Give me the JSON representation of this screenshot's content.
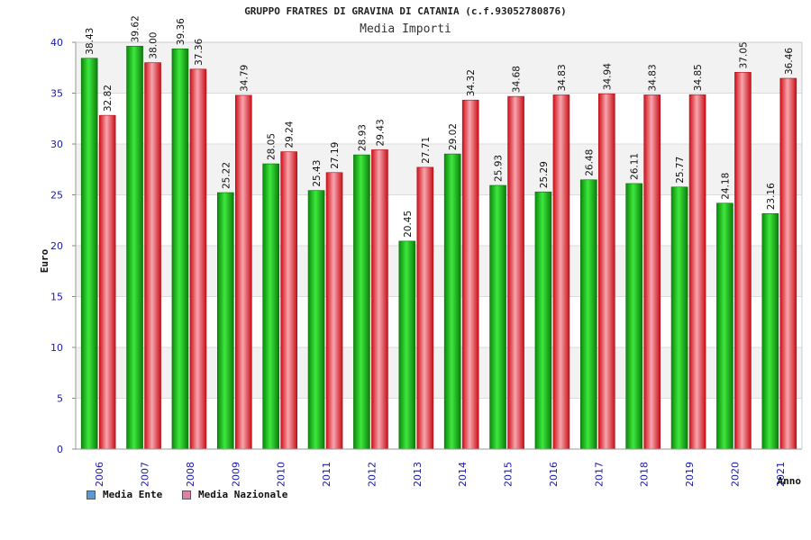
{
  "chart_data": {
    "type": "bar",
    "title": "GRUPPO FRATRES DI GRAVINA DI CATANIA (c.f.93052780876)",
    "subtitle": "Media Importi",
    "xlabel": "Anno",
    "ylabel": "Euro",
    "ylim": [
      0,
      40
    ],
    "yticks": [
      0,
      5,
      10,
      15,
      20,
      25,
      30,
      35,
      40
    ],
    "grid": true,
    "legend_position": "bottom-left",
    "categories": [
      "2006",
      "2007",
      "2008",
      "2009",
      "2010",
      "2011",
      "2012",
      "2013",
      "2014",
      "2015",
      "2016",
      "2017",
      "2018",
      "2019",
      "2020",
      "2021"
    ],
    "series": [
      {
        "name": "Media Ente",
        "legend_color": "#5b9bd5",
        "bar_color": "#1db41d",
        "values": [
          38.43,
          39.62,
          39.36,
          25.22,
          28.05,
          25.43,
          28.93,
          20.45,
          29.02,
          25.93,
          25.29,
          26.48,
          26.11,
          25.77,
          24.18,
          23.16
        ],
        "labels": [
          "38.43",
          "39.62",
          "39.36",
          "25.22",
          "28.05",
          "25.43",
          "28.93",
          "20.45",
          "29.02",
          "25.93",
          "25.29",
          "26.48",
          "26.11",
          "25.77",
          "24.18",
          "23.16"
        ]
      },
      {
        "name": "Media Nazionale",
        "legend_color": "#e07fa8",
        "bar_color": "#e8202a",
        "values": [
          32.82,
          38.0,
          37.36,
          34.79,
          29.24,
          27.19,
          29.43,
          27.71,
          34.32,
          34.68,
          34.83,
          34.94,
          34.83,
          34.85,
          37.05,
          36.46
        ],
        "labels": [
          "32.82",
          "38.00",
          "37.36",
          "34.79",
          "29.24",
          "27.19",
          "29.43",
          "27.71",
          "34.32",
          "34.68",
          "34.83",
          "34.94",
          "34.83",
          "34.85",
          "37.05",
          "36.46"
        ]
      }
    ]
  }
}
